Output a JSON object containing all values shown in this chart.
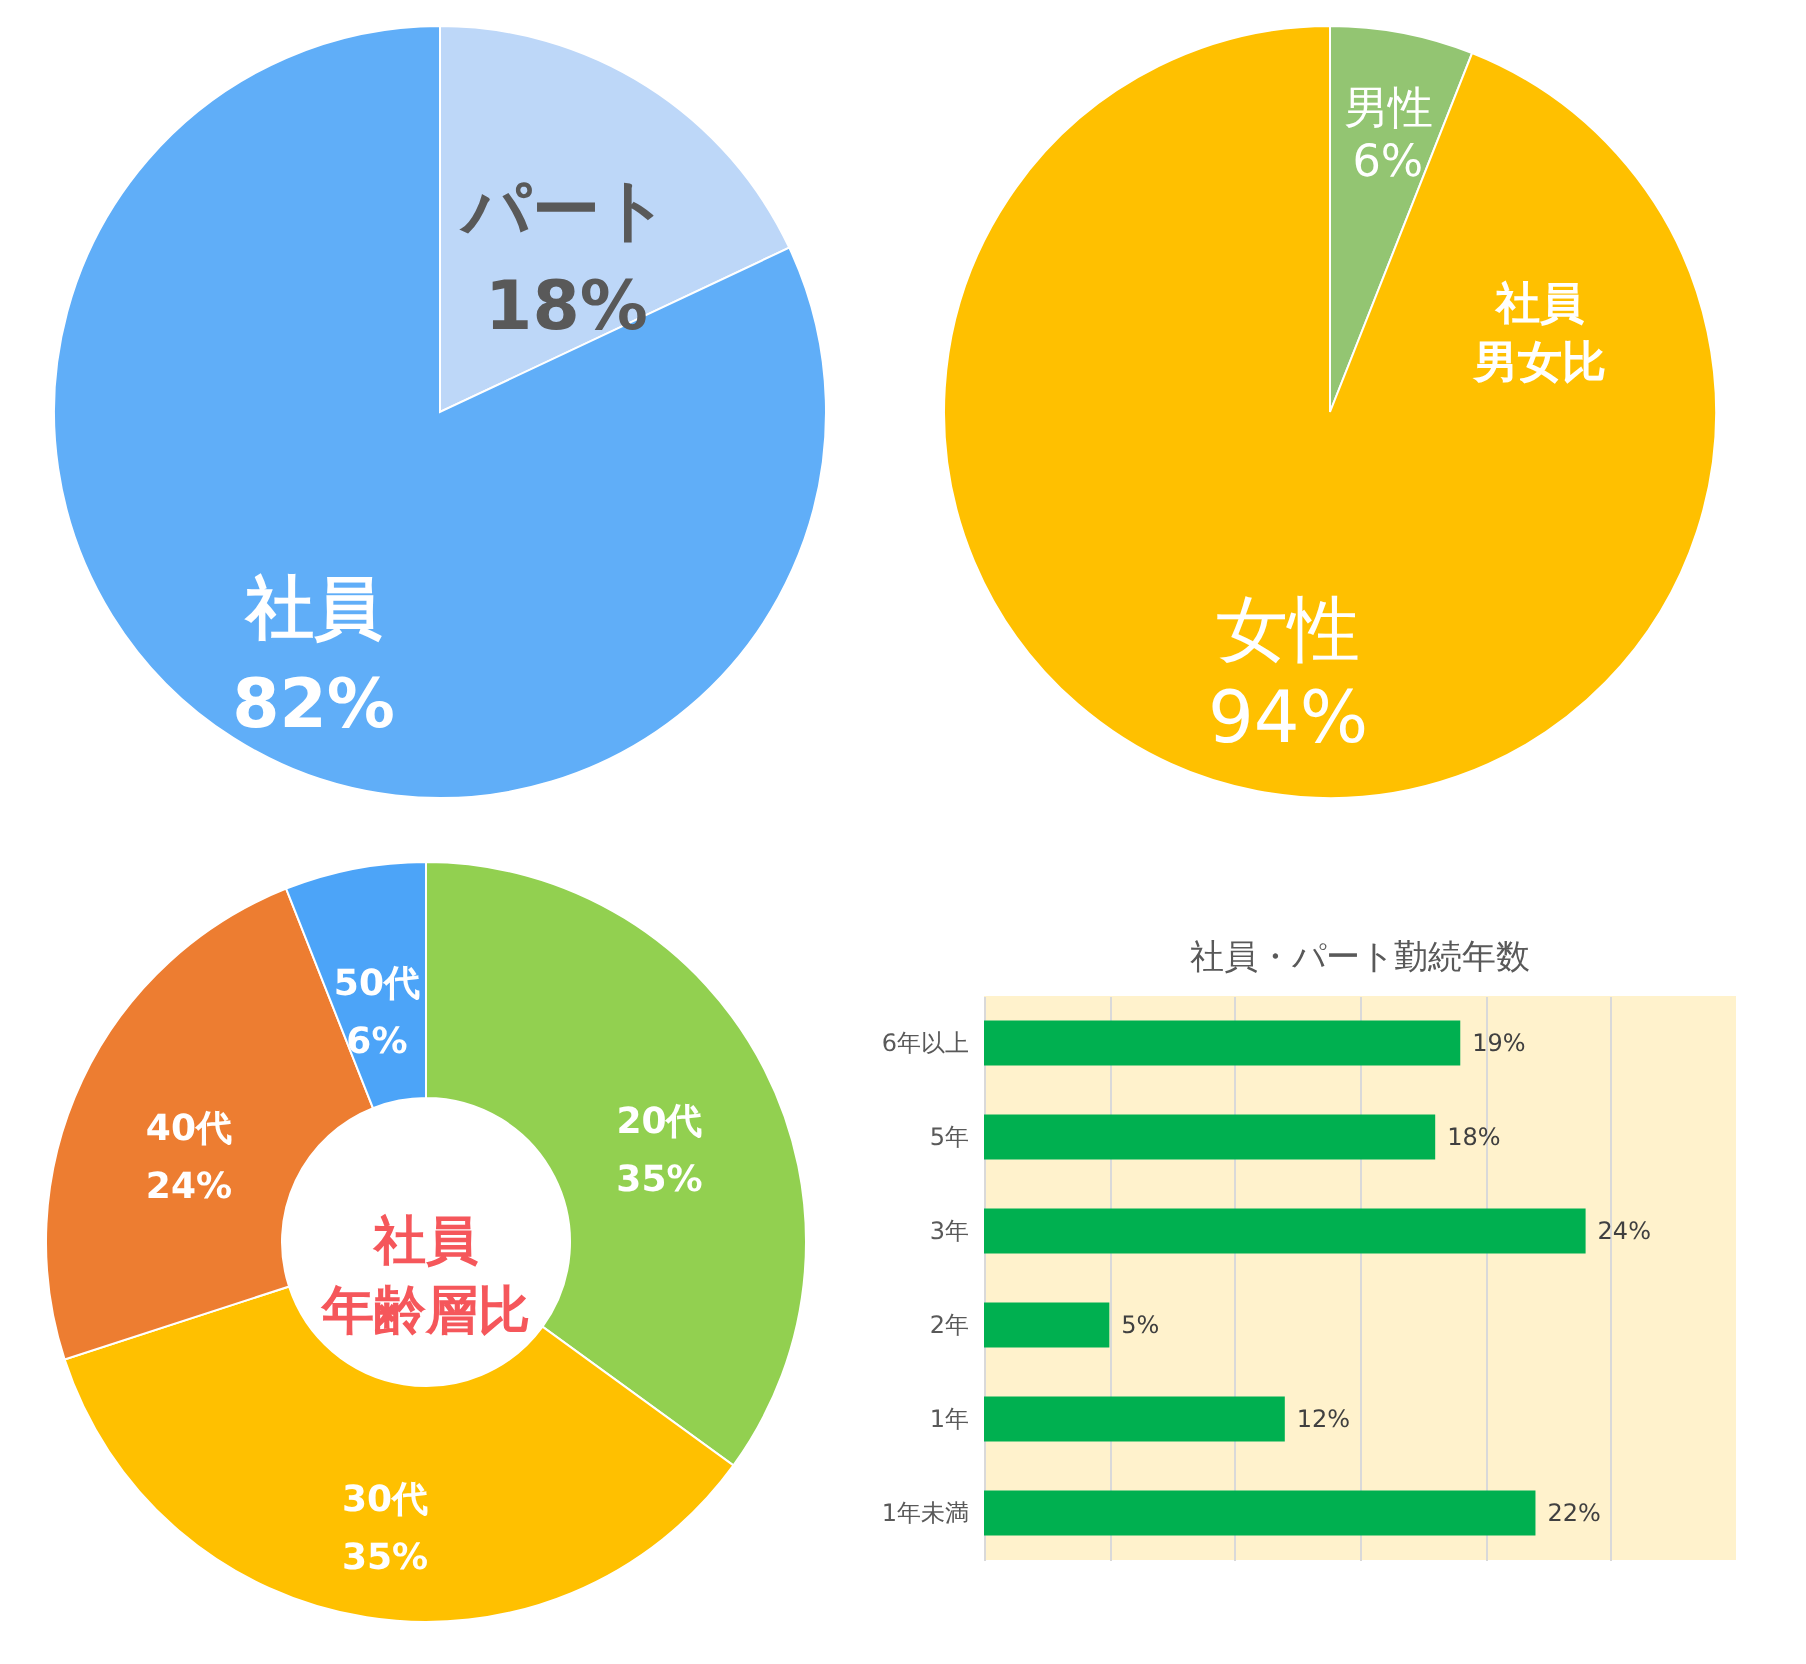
{
  "chart_data": [
    {
      "type": "pie",
      "categories": [
        "パート",
        "社員"
      ],
      "values": [
        18,
        82
      ],
      "value_labels": [
        "18%",
        "82%"
      ],
      "colors": [
        "#bdd7f8",
        "#60aef8"
      ]
    },
    {
      "type": "pie",
      "title": "社員男女比",
      "categories": [
        "男性",
        "女性"
      ],
      "values": [
        6,
        94
      ],
      "value_labels": [
        "6%",
        "94%"
      ],
      "colors": [
        "#93c572",
        "#ffc000"
      ]
    },
    {
      "type": "donut",
      "title": "社員年齢層比",
      "categories": [
        "20代",
        "30代",
        "40代",
        "50代"
      ],
      "values": [
        35,
        35,
        24,
        6
      ],
      "value_labels": [
        "35%",
        "35%",
        "24%",
        "6%"
      ],
      "colors": [
        "#92d050",
        "#ffc000",
        "#ed7d31",
        "#4ca4f8"
      ]
    },
    {
      "type": "bar",
      "orientation": "horizontal",
      "title": "社員・パート勤続年数",
      "categories": [
        "6年以上",
        "5年",
        "3年",
        "2年",
        "1年",
        "1年未満"
      ],
      "values": [
        19,
        18,
        24,
        5,
        12,
        22
      ],
      "value_labels": [
        "19%",
        "18%",
        "24%",
        "5%",
        "12%",
        "22%"
      ],
      "color": "#00b050",
      "xlim": [
        0,
        30
      ],
      "xticks": [
        {
          "value": 0,
          "label": null
        },
        {
          "value": 5,
          "label": null
        },
        {
          "value": 10,
          "label": null
        },
        {
          "value": 15,
          "label": null
        },
        {
          "value": 20,
          "label": null
        },
        {
          "value": 25,
          "label": null
        },
        {
          "value": 30,
          "label": null
        }
      ],
      "grid": "x",
      "tick_labels": "y"
    }
  ]
}
